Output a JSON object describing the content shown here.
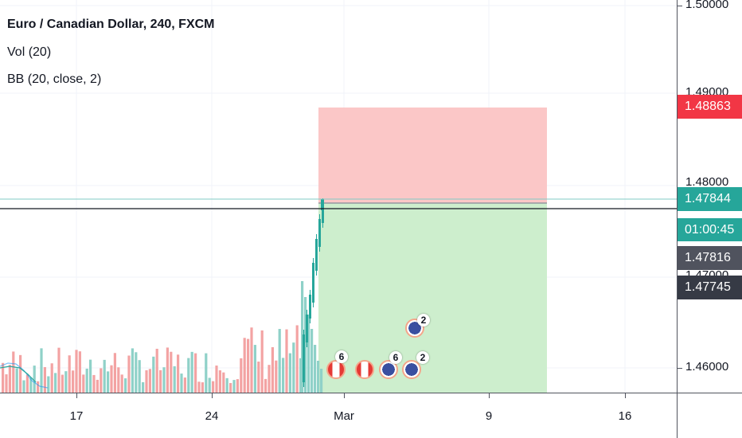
{
  "legend": {
    "title": "Euro / Canadian Dollar, 240, FXCM",
    "indicator_vol": "Vol (20)",
    "indicator_bb": "BB (20, close, 2)"
  },
  "price_axis": {
    "labels": [
      "1.50000",
      "1.49000",
      "1.48000",
      "1.47000",
      "1.46000"
    ],
    "tags": {
      "stop_loss": "1.48863",
      "last_price": "1.47844",
      "countdown": "01:00:45",
      "bid": "1.47816",
      "entry": "1.47745"
    }
  },
  "time_axis": {
    "labels": [
      "17",
      "24",
      "Mar",
      "9",
      "16"
    ]
  },
  "events": [
    {
      "icon": "canada-flag-icon",
      "count": "6"
    },
    {
      "icon": "canada-flag-icon",
      "count": ""
    },
    {
      "icon": "eu-flag-icon",
      "count": "6"
    },
    {
      "icon": "eu-flag-icon",
      "count": "2"
    },
    {
      "icon": "eu-flag-icon",
      "count": "2"
    }
  ],
  "colors": {
    "up": "#26a69a",
    "down": "#ef5350",
    "vol_up": "#8fd1c8",
    "vol_down": "#f3a3a3",
    "stop_zone": "#fbc7c7",
    "target_zone": "#cdeecd",
    "stop_tag": "#f23645",
    "last_tag": "#26a69a",
    "dark_tag": "#363a45"
  }
}
